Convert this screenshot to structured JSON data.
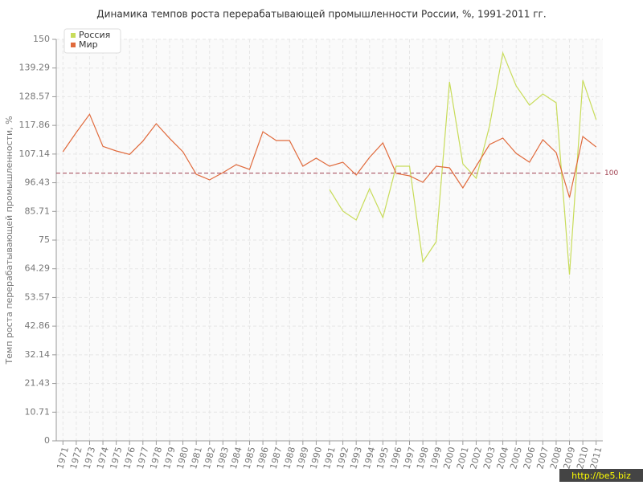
{
  "chart_data": {
    "type": "line",
    "title": "Динамика темпов роста перерабатывающей промышленности России, %, 1991-2011 гг.",
    "y_label": "Темп роста перерабатывающей промышленности, %",
    "categories": [
      "1971",
      "1972",
      "1973",
      "1974",
      "1975",
      "1976",
      "1977",
      "1978",
      "1979",
      "1980",
      "1981",
      "1982",
      "1983",
      "1984",
      "1985",
      "1986",
      "1987",
      "1988",
      "1989",
      "1990",
      "1991",
      "1992",
      "1993",
      "1994",
      "1995",
      "1996",
      "1997",
      "1998",
      "1999",
      "2000",
      "2001",
      "2002",
      "2003",
      "2004",
      "2005",
      "2006",
      "2007",
      "2008",
      "2009",
      "2010",
      "2011"
    ],
    "series": [
      {
        "name": "Россия",
        "color": "#c8dc5a",
        "values": [
          null,
          null,
          null,
          null,
          null,
          null,
          null,
          null,
          null,
          null,
          null,
          null,
          null,
          null,
          null,
          null,
          null,
          null,
          null,
          null,
          93.9,
          85.8,
          82.5,
          94.2,
          83.4,
          102.6,
          102.6,
          66.9,
          74.4,
          134.1,
          103.5,
          98.1,
          117.6,
          144.9,
          132.6,
          125.4,
          129.6,
          126.3,
          62.1,
          134.7,
          120
        ]
      },
      {
        "name": "Мир",
        "color": "#e06a3c",
        "values": [
          108,
          115.2,
          122,
          110,
          108.3,
          107,
          112,
          118.5,
          113,
          108,
          99.6,
          97.5,
          100.2,
          103.2,
          101.4,
          115.5,
          112.2,
          112.2,
          102.6,
          105.6,
          102.6,
          104.1,
          99.3,
          105.9,
          111.3,
          99.9,
          99,
          96.6,
          102.6,
          102,
          94.5,
          102.6,
          110.7,
          113.1,
          107.4,
          104.1,
          112.5,
          107.7,
          90.9,
          113.7,
          109.8
        ]
      }
    ],
    "reference_line": 100,
    "reference_color": "#a04050",
    "ylim": [
      0,
      150
    ],
    "yticks": [
      0,
      10.71,
      21.43,
      32.14,
      42.86,
      53.57,
      64.29,
      75,
      85.71,
      96.43,
      107.14,
      117.86,
      128.57,
      139.29,
      150
    ],
    "grid": true,
    "legend": "top-left",
    "watermark": "http://be5.biz"
  }
}
